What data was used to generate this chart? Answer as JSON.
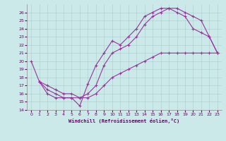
{
  "xlabel": "Windchill (Refroidissement éolien,°C)",
  "xlim": [
    -0.5,
    23.5
  ],
  "ylim": [
    14,
    27
  ],
  "yticks": [
    14,
    15,
    16,
    17,
    18,
    19,
    20,
    21,
    22,
    23,
    24,
    25,
    26
  ],
  "xticks": [
    0,
    1,
    2,
    3,
    4,
    5,
    6,
    7,
    8,
    9,
    10,
    11,
    12,
    13,
    14,
    15,
    16,
    17,
    18,
    19,
    20,
    21,
    22,
    23
  ],
  "bg_color": "#cce9e9",
  "grid_color": "#aacccc",
  "line_color": "#993399",
  "line1_x": [
    0,
    1,
    2,
    3,
    4,
    5,
    6,
    7,
    8,
    9,
    10,
    11,
    12,
    13,
    14,
    15,
    16,
    17,
    18,
    19,
    20,
    21,
    22,
    23
  ],
  "line1_y": [
    20,
    17.5,
    16.0,
    15.5,
    15.5,
    15.5,
    14.5,
    17.2,
    19.5,
    21.0,
    22.5,
    22.0,
    23.0,
    24.0,
    25.5,
    26.0,
    26.5,
    26.5,
    26.0,
    25.5,
    24.0,
    23.5,
    23.0,
    21.0
  ],
  "line2_x": [
    1,
    2,
    3,
    4,
    5,
    6,
    7,
    8,
    9,
    10,
    11,
    12,
    13,
    14,
    15,
    16,
    17,
    18,
    19,
    20,
    21,
    22,
    23
  ],
  "line2_y": [
    17.5,
    16.5,
    16.0,
    15.5,
    15.5,
    15.5,
    16.0,
    17.0,
    19.5,
    21.0,
    21.5,
    22.0,
    23.0,
    24.5,
    25.5,
    26.0,
    26.5,
    26.5,
    26.0,
    25.5,
    25.0,
    23.0,
    21.0
  ],
  "line3_x": [
    1,
    2,
    3,
    4,
    5,
    6,
    7,
    8,
    9,
    10,
    11,
    12,
    13,
    14,
    15,
    16,
    17,
    18,
    19,
    20,
    21,
    22,
    23
  ],
  "line3_y": [
    17.5,
    17.0,
    16.5,
    16.0,
    16.0,
    15.5,
    15.5,
    16.0,
    17.0,
    18.0,
    18.5,
    19.0,
    19.5,
    20.0,
    20.5,
    21.0,
    21.0,
    21.0,
    21.0,
    21.0,
    21.0,
    21.0,
    21.0
  ],
  "marker": "+",
  "markersize": 3,
  "linewidth": 0.8
}
